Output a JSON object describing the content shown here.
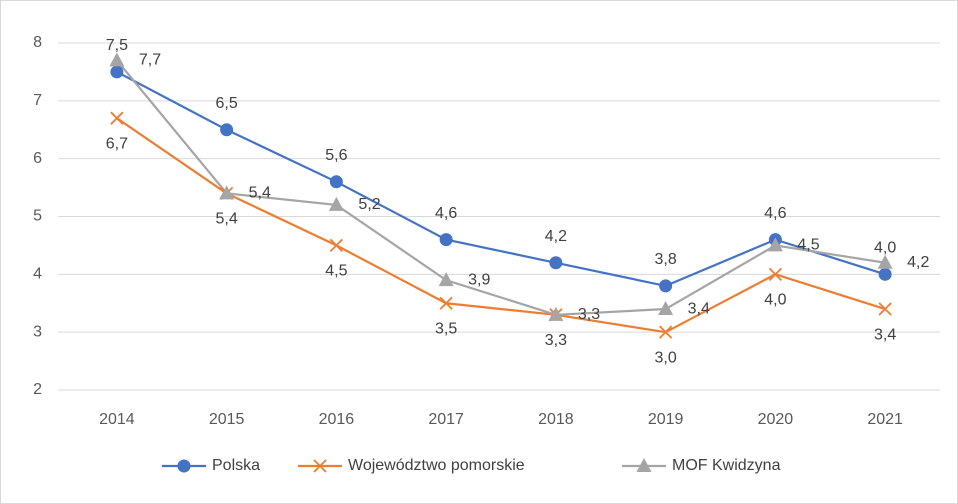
{
  "chart_data": {
    "type": "line",
    "categories": [
      "2014",
      "2015",
      "2016",
      "2017",
      "2018",
      "2019",
      "2020",
      "2021"
    ],
    "series": [
      {
        "name": "Polska",
        "color": "#4472c4",
        "marker": "circle",
        "values": [
          7.5,
          6.5,
          5.6,
          4.6,
          4.2,
          3.8,
          4.6,
          4.0
        ],
        "value_labels": [
          "7,5",
          "6,5",
          "5,6",
          "4,6",
          "4,2",
          "3,8",
          "4,6",
          "4,0"
        ]
      },
      {
        "name": "Województwo pomorskie",
        "color": "#ed7d31",
        "marker": "x",
        "values": [
          6.7,
          5.4,
          4.5,
          3.5,
          3.3,
          3.0,
          4.0,
          3.4
        ],
        "value_labels": [
          "6,7",
          "5,4",
          "4,5",
          "3,5",
          "3,3",
          "3,0",
          "4,0",
          "3,4"
        ]
      },
      {
        "name": "MOF Kwidzyna",
        "color": "#a5a5a5",
        "marker": "triangle",
        "values": [
          7.7,
          5.4,
          5.2,
          3.9,
          3.3,
          3.4,
          4.5,
          4.2
        ],
        "value_labels": [
          "7,7",
          "5,4",
          "5,2",
          "3,9",
          "3,3",
          "3,4",
          "4,5",
          "4,2"
        ]
      }
    ],
    "ylim": [
      2,
      8
    ],
    "yticks": [
      2,
      3,
      4,
      5,
      6,
      7,
      8
    ],
    "grid": true,
    "legend": "bottom"
  }
}
